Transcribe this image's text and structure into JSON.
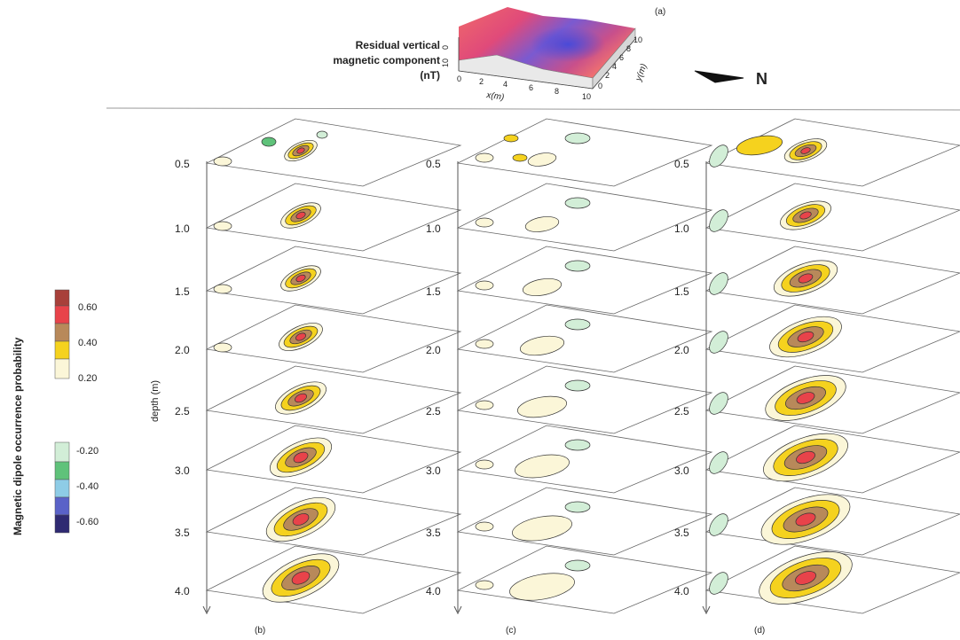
{
  "header": {
    "title_lines": [
      "Residual vertical",
      "magnetic component",
      "(nT)"
    ],
    "panel_a": "(a)",
    "surface_axis_x": "x(m)",
    "surface_axis_y": "y(m)",
    "surface_ticks_x": [
      "0",
      "2",
      "4",
      "6",
      "8",
      "10"
    ],
    "surface_ticks_y": [
      "0",
      "2",
      "4",
      "6",
      "8",
      "10"
    ],
    "surface_ticks_z": [
      "0",
      "10"
    ],
    "north": "N"
  },
  "legend": {
    "title": "Magnetic dipole occurrence probability",
    "positive": [
      {
        "value": "0.60",
        "color": "#e8434a"
      },
      {
        "value": "0.40",
        "color": "#b8895a"
      },
      {
        "value": "0.20",
        "color": "#f5d21e"
      }
    ],
    "positive_top_color": "#a8403a",
    "positive_bottom_color": "#fbf6d8",
    "negative": [
      {
        "value": "-0.20",
        "color": "#d2eed7"
      },
      {
        "value": "-0.40",
        "color": "#5fc27a"
      },
      {
        "value": "-0.60",
        "color": "#8ecce6"
      }
    ],
    "negative_bottom_colors": [
      "#5a62c8",
      "#2f2a72"
    ]
  },
  "axis": {
    "depth_label": "depth (m)",
    "depths": [
      "0.5",
      "1.0",
      "1.5",
      "2.0",
      "2.5",
      "3.0",
      "3.5",
      "4.0"
    ]
  },
  "panels": [
    {
      "label": "(b)"
    },
    {
      "label": "(c)"
    },
    {
      "label": "(d)"
    }
  ],
  "colors": {
    "very_low": "#fbf6d8",
    "low": "#f5d21e",
    "mid": "#b8895a",
    "high": "#e8434a",
    "neg_low": "#d2eed7",
    "neg_mid": "#5fc27a",
    "outline": "#333333"
  }
}
